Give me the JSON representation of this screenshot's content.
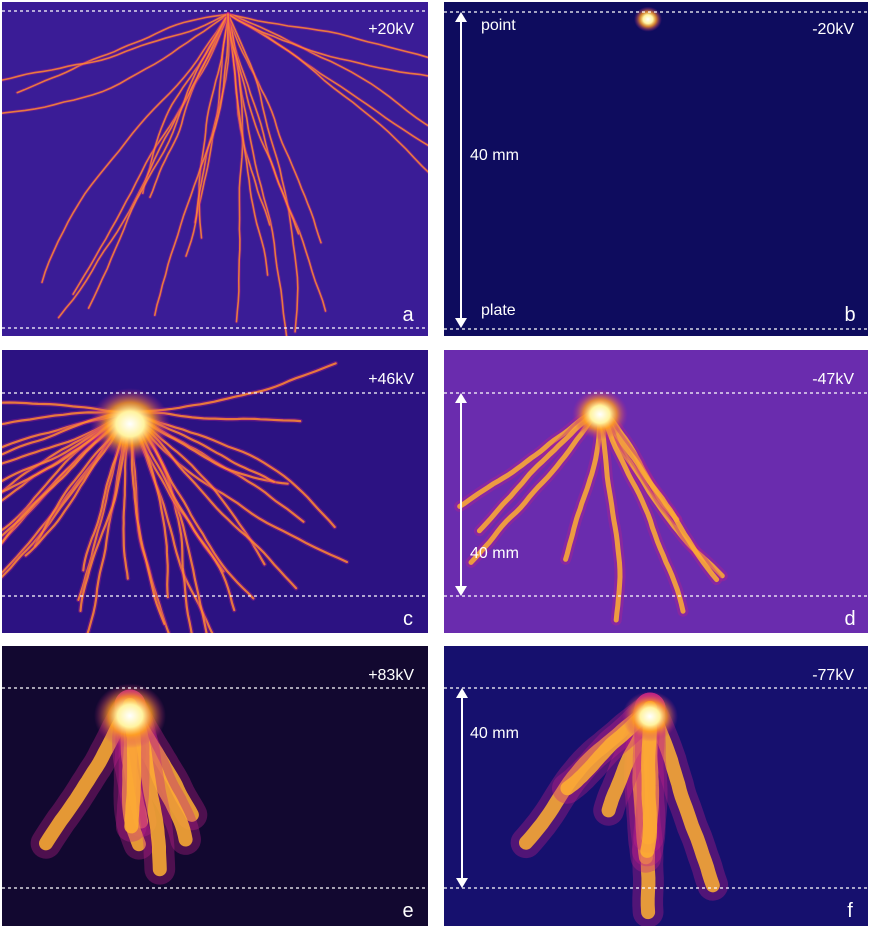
{
  "panels": [
    {
      "voltage": "+20kV",
      "letter": "a"
    },
    {
      "voltage": "-20kV",
      "letter": "b",
      "top_label": "point",
      "distance": "40 mm",
      "bottom_label": "plate"
    },
    {
      "voltage": "+46kV",
      "letter": "c"
    },
    {
      "voltage": "-47kV",
      "letter": "d",
      "distance": "40 mm"
    },
    {
      "voltage": "+83kV",
      "letter": "e"
    },
    {
      "voltage": "-77kV",
      "letter": "f",
      "distance": "40 mm"
    }
  ]
}
